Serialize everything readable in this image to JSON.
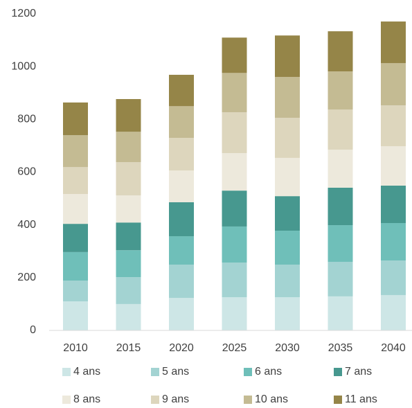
{
  "chart_data": {
    "type": "stacked_bar",
    "categories": [
      "2010",
      "2015",
      "2020",
      "2025",
      "2030",
      "2035",
      "2040"
    ],
    "series": [
      {
        "name": "4 ans",
        "color": "#cde6e6",
        "values": [
          110,
          100,
          123,
          126,
          126,
          129,
          134
        ]
      },
      {
        "name": "5 ans",
        "color": "#a3d3d2",
        "values": [
          79,
          102,
          126,
          131,
          123,
          131,
          131
        ]
      },
      {
        "name": "6 ans",
        "color": "#6fbfb9",
        "values": [
          108,
          102,
          108,
          137,
          129,
          139,
          142
        ]
      },
      {
        "name": "7 ans",
        "color": "#47988f",
        "values": [
          107,
          105,
          129,
          136,
          131,
          142,
          142
        ]
      },
      {
        "name": "8 ans",
        "color": "#ede9dc",
        "values": [
          113,
          103,
          120,
          142,
          145,
          144,
          149
        ]
      },
      {
        "name": "9 ans",
        "color": "#ddd6bd",
        "values": [
          102,
          126,
          124,
          155,
          152,
          152,
          155
        ]
      },
      {
        "name": "10 ans",
        "color": "#c4bb93",
        "values": [
          121,
          115,
          120,
          149,
          155,
          145,
          160
        ]
      },
      {
        "name": "11 ans",
        "color": "#958548",
        "values": [
          124,
          124,
          119,
          134,
          157,
          152,
          158
        ]
      }
    ],
    "ylim": [
      0,
      1200
    ],
    "yticks": [
      0,
      200,
      400,
      600,
      800,
      1000,
      1200
    ],
    "grid": false,
    "legend": "bottom"
  }
}
